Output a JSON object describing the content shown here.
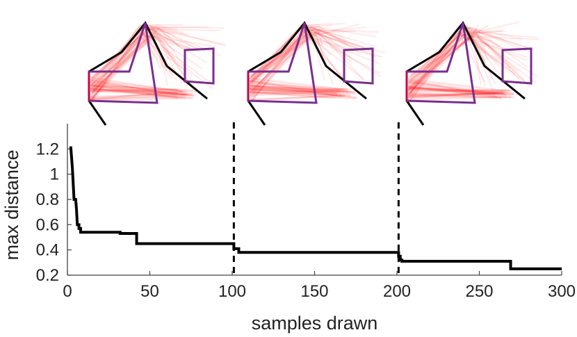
{
  "chart_data": {
    "type": "line",
    "xlabel": "samples drawn",
    "ylabel": "max distance",
    "xlim": [
      0,
      300
    ],
    "ylim": [
      0.2,
      1.4
    ],
    "xticks": [
      0,
      50,
      100,
      150,
      200,
      250,
      300
    ],
    "yticks": [
      0.2,
      0.4,
      0.6,
      0.8,
      1,
      1.2
    ],
    "grid": false,
    "series": [
      {
        "color": "#000000",
        "points": [
          [
            2,
            1.22
          ],
          [
            3,
            1.05
          ],
          [
            4,
            0.8
          ],
          [
            5,
            0.8
          ],
          [
            5.5,
            0.72
          ],
          [
            6,
            0.6
          ],
          [
            7,
            0.6
          ],
          [
            7,
            0.57
          ],
          [
            8,
            0.57
          ],
          [
            8,
            0.54
          ],
          [
            32,
            0.54
          ],
          [
            32,
            0.53
          ],
          [
            42,
            0.53
          ],
          [
            42,
            0.45
          ],
          [
            101,
            0.45
          ],
          [
            101,
            0.41
          ],
          [
            104,
            0.41
          ],
          [
            104,
            0.38
          ],
          [
            201,
            0.38
          ],
          [
            201,
            0.35
          ],
          [
            202,
            0.35
          ],
          [
            202,
            0.32
          ],
          [
            203,
            0.32
          ],
          [
            203,
            0.31
          ],
          [
            269,
            0.31
          ],
          [
            269,
            0.25
          ],
          [
            300,
            0.25
          ]
        ]
      }
    ],
    "vertical_markers": [
      101,
      201
    ],
    "colors": {
      "line": "#000000",
      "marker": "#000000",
      "pose_samples": "#ff0000",
      "box": "#7b2d8e",
      "skeleton": "#000000"
    },
    "insets": [
      {
        "at_samples": 0,
        "description_icon": "pose-sample-cloud"
      },
      {
        "at_samples": 100,
        "description_icon": "pose-sample-cloud"
      },
      {
        "at_samples": 200,
        "description_icon": "pose-sample-cloud"
      }
    ]
  }
}
